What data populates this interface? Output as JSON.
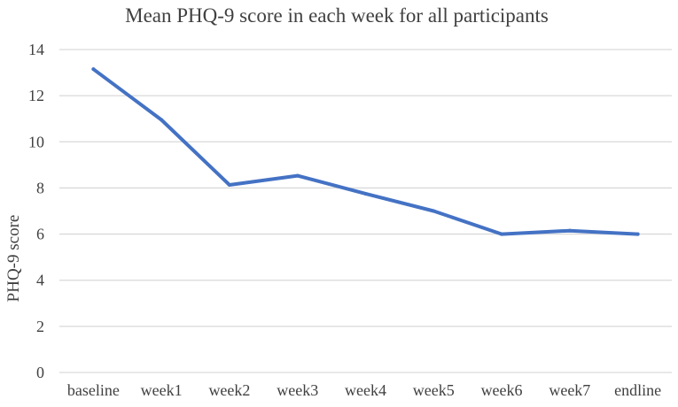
{
  "chart_data": {
    "type": "line",
    "title": "Mean PHQ-9 score in each week for all participants",
    "xlabel": "",
    "ylabel": "PHQ-9 score",
    "categories": [
      "baseline",
      "week1",
      "week2",
      "week3",
      "week4",
      "week5",
      "week6",
      "week7",
      "endline"
    ],
    "series": [
      {
        "values": [
          13.15,
          10.95,
          8.13,
          8.53,
          7.75,
          7.0,
          6.0,
          6.15,
          6.0
        ]
      }
    ],
    "ylim": [
      0,
      14
    ],
    "yticks": [
      0,
      2,
      4,
      6,
      8,
      10,
      12,
      14
    ],
    "grid": true,
    "legend": "none",
    "colors": {
      "line": "#4472C4",
      "grid": "#D9D9D9",
      "text": "#404040"
    }
  }
}
